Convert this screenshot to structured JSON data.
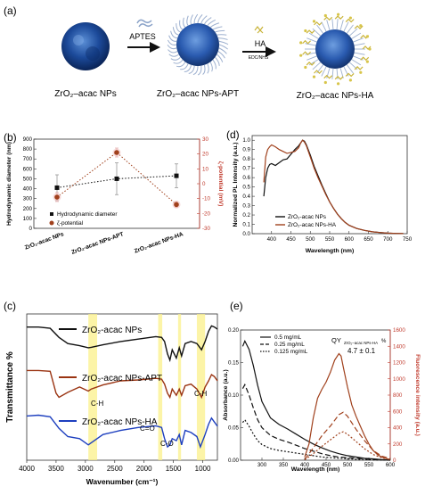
{
  "panel_a": {
    "label": "(a)",
    "step1": "APTES",
    "step2": "HA",
    "step2_sub": "EDC/NHS",
    "np1": "ZrO₂–acac NPs",
    "np2": "ZrO₂–acac NPs-APT",
    "np3": "ZrO₂–acac NPs-HA"
  },
  "panel_b": {
    "label": "(b)",
    "chart_data": {
      "type": "scatter",
      "categories": [
        "ZrO₂-acac NPs",
        "ZrO₂-acac NPs-APT",
        "ZrO₂-acac NPs-HA"
      ],
      "series": [
        {
          "name": "Hydrodynamic diameter",
          "axis": "left",
          "values": [
            410,
            500,
            530
          ],
          "errors": [
            130,
            160,
            120
          ],
          "color": "#111111"
        },
        {
          "name": "ζ-potential",
          "axis": "right",
          "values": [
            -9,
            21,
            -14
          ],
          "errors": [
            3,
            3,
            2
          ],
          "color": "#a0401c"
        }
      ],
      "ylabel": "Hydrodynamic diameter (nm)",
      "ylabel_right": "ζ-potential (mV)",
      "ylim": [
        0,
        900
      ],
      "ylim_right": [
        -30,
        30
      ],
      "yticks": [
        0,
        100,
        200,
        300,
        400,
        500,
        600,
        700,
        800,
        900
      ],
      "yticks_right": [
        -30,
        -20,
        -10,
        0,
        10,
        20,
        30
      ],
      "legend": [
        "Hydrodynamic diameter",
        "ζ-potential"
      ],
      "legend_position": "bottom-left"
    }
  },
  "panel_d": {
    "label": "(d)",
    "chart_data": {
      "type": "line",
      "xlabel": "Wavelength (nm)",
      "ylabel": "Normalized PL Intensity (a.u.)",
      "xlim": [
        350,
        750
      ],
      "ylim": [
        0,
        1.05
      ],
      "xticks": [
        400,
        450,
        500,
        550,
        600,
        650,
        700,
        750
      ],
      "yticks": [
        0.0,
        0.1,
        0.2,
        0.3,
        0.4,
        0.5,
        0.6,
        0.7,
        0.8,
        0.9,
        1.0
      ],
      "series": [
        {
          "name": "ZrO₂-acac NPs",
          "color": "#111111",
          "x": [
            380,
            385,
            390,
            395,
            400,
            410,
            420,
            430,
            440,
            450,
            460,
            470,
            475,
            480,
            485,
            490,
            500,
            510,
            520,
            530,
            540,
            550,
            560,
            570,
            580,
            590,
            600,
            620,
            640,
            660,
            680,
            700,
            720,
            740
          ],
          "y": [
            0.4,
            0.6,
            0.7,
            0.74,
            0.75,
            0.73,
            0.76,
            0.79,
            0.8,
            0.85,
            0.9,
            0.94,
            0.97,
            1.0,
            0.99,
            0.95,
            0.84,
            0.72,
            0.62,
            0.52,
            0.43,
            0.34,
            0.27,
            0.21,
            0.16,
            0.12,
            0.09,
            0.055,
            0.035,
            0.02,
            0.012,
            0.006,
            0.003,
            0.001
          ]
        },
        {
          "name": "ZrO₂-acac NPs-HA",
          "color": "#a0401c",
          "x": [
            380,
            385,
            390,
            395,
            400,
            410,
            420,
            430,
            440,
            450,
            460,
            470,
            475,
            480,
            485,
            490,
            500,
            510,
            520,
            530,
            540,
            550,
            560,
            570,
            580,
            590,
            600,
            620,
            640,
            660,
            680,
            700,
            720,
            740
          ],
          "y": [
            0.55,
            0.82,
            0.9,
            0.93,
            0.95,
            0.93,
            0.9,
            0.88,
            0.86,
            0.87,
            0.88,
            0.92,
            0.97,
            1.0,
            0.98,
            0.94,
            0.82,
            0.7,
            0.6,
            0.51,
            0.42,
            0.34,
            0.27,
            0.21,
            0.16,
            0.12,
            0.09,
            0.055,
            0.035,
            0.02,
            0.012,
            0.006,
            0.003,
            0.001
          ]
        }
      ],
      "legend": [
        "ZrO₂-acac NPs",
        "ZrO₂-acac NPs-HA"
      ],
      "legend_position": "bottom-center"
    }
  },
  "panel_c": {
    "label": "(c)",
    "chart_data": {
      "type": "line",
      "xlabel": "Wavenumber (cm⁻¹)",
      "ylabel": "Transmittance %",
      "xlim": [
        4000,
        750
      ],
      "xticks": [
        4000,
        3500,
        3000,
        2500,
        2000,
        1500,
        1000
      ],
      "series": [
        {
          "name": "ZrO₂-acac NPs",
          "color": "#111111",
          "offset": 2.0,
          "x": [
            4000,
            3800,
            3600,
            3450,
            3300,
            3100,
            2950,
            2900,
            2700,
            2400,
            2100,
            1800,
            1700,
            1650,
            1600,
            1560,
            1520,
            1450,
            1400,
            1360,
            1300,
            1200,
            1100,
            1020,
            960,
            900,
            850,
            800,
            750
          ],
          "y": [
            0.95,
            0.95,
            0.92,
            0.7,
            0.55,
            0.5,
            0.45,
            0.46,
            0.52,
            0.6,
            0.66,
            0.72,
            0.7,
            0.6,
            0.3,
            0.15,
            0.4,
            0.2,
            0.45,
            0.25,
            0.55,
            0.6,
            0.55,
            0.4,
            0.6,
            0.85,
            0.98,
            0.95,
            0.9
          ]
        },
        {
          "name": "ZrO₂-acac NPs-APT",
          "color": "#9a3412",
          "offset": 1.0,
          "x": [
            4000,
            3800,
            3600,
            3500,
            3450,
            3300,
            3100,
            2950,
            2900,
            2700,
            2400,
            2100,
            1800,
            1700,
            1650,
            1600,
            1560,
            1520,
            1450,
            1400,
            1360,
            1300,
            1200,
            1100,
            1020,
            960,
            900,
            850,
            800,
            750
          ],
          "y": [
            0.95,
            0.95,
            0.93,
            0.4,
            0.3,
            0.42,
            0.55,
            0.45,
            0.5,
            0.6,
            0.7,
            0.72,
            0.76,
            0.74,
            0.62,
            0.4,
            0.3,
            0.5,
            0.35,
            0.5,
            0.35,
            0.58,
            0.62,
            0.5,
            0.3,
            0.55,
            0.7,
            0.85,
            0.8,
            0.7
          ]
        },
        {
          "name": "ZrO₂-acac NPs-HA",
          "color": "#1d3fbf",
          "offset": 0.0,
          "x": [
            4000,
            3800,
            3600,
            3450,
            3300,
            3100,
            2950,
            2900,
            2700,
            2400,
            2100,
            1800,
            1700,
            1650,
            1600,
            1560,
            1520,
            1450,
            1400,
            1360,
            1300,
            1200,
            1100,
            1040,
            960,
            900,
            850,
            800,
            750
          ],
          "y": [
            0.9,
            0.92,
            0.88,
            0.6,
            0.4,
            0.35,
            0.2,
            0.25,
            0.45,
            0.55,
            0.62,
            0.66,
            0.62,
            0.35,
            0.15,
            0.2,
            0.35,
            0.3,
            0.45,
            0.2,
            0.55,
            0.5,
            0.4,
            0.15,
            0.45,
            0.7,
            0.85,
            0.75,
            0.65
          ]
        }
      ],
      "highlight_bands": [
        [
          2950,
          2800
        ],
        [
          1760,
          1690
        ],
        [
          1420,
          1370
        ],
        [
          1100,
          960
        ]
      ],
      "annotations": [
        "C-H",
        "C=O",
        "C-O",
        "C-H"
      ]
    }
  },
  "panel_e": {
    "label": "(e)",
    "qy_label": "QY",
    "qy_sub": "ZrO₂–acac NPs-HA",
    "qy_unit": "%",
    "qy_value": "4.7 ± 0.1",
    "chart_data": {
      "type": "line",
      "xlabel": "Wavelength (nm)",
      "ylabel": "Absorbance (a.u.)",
      "ylabel_right": "Fluorescence intensity (a.u.)",
      "xlim": [
        250,
        600
      ],
      "ylim": [
        0,
        0.2
      ],
      "ylim_right": [
        0,
        1600
      ],
      "xticks": [
        300,
        350,
        400,
        450,
        500,
        550,
        600
      ],
      "yticks": [
        0.0,
        0.05,
        0.1,
        0.15,
        0.2
      ],
      "yticks_right": [
        0,
        200,
        400,
        600,
        800,
        1000,
        1200,
        1400,
        1600
      ],
      "legend": [
        "0.5 mg/mL",
        "0.25 mg/mL",
        "0.125 mg/mL"
      ],
      "legend_position": "top-left",
      "absorbance_series": [
        {
          "name": "0.5 mg/mL",
          "dash": "",
          "x": [
            255,
            260,
            270,
            280,
            290,
            300,
            320,
            340,
            360,
            380,
            400,
            420,
            440,
            460,
            480,
            500,
            520,
            540,
            560,
            580,
            600
          ],
          "y": [
            0.175,
            0.183,
            0.17,
            0.145,
            0.115,
            0.09,
            0.065,
            0.055,
            0.048,
            0.04,
            0.032,
            0.025,
            0.019,
            0.014,
            0.01,
            0.007,
            0.005,
            0.003,
            0.002,
            0.001,
            0.0
          ]
        },
        {
          "name": "0.25 mg/mL",
          "dash": "6,3",
          "x": [
            255,
            260,
            270,
            280,
            290,
            300,
            320,
            340,
            360,
            380,
            400,
            420,
            440,
            460,
            480,
            500,
            520,
            540,
            560,
            580,
            600
          ],
          "y": [
            0.11,
            0.116,
            0.1,
            0.08,
            0.062,
            0.05,
            0.038,
            0.032,
            0.028,
            0.023,
            0.018,
            0.014,
            0.01,
            0.007,
            0.005,
            0.004,
            0.003,
            0.002,
            0.001,
            0.0005,
            0.0
          ]
        },
        {
          "name": "0.125 mg/mL",
          "dash": "2,2",
          "x": [
            255,
            260,
            270,
            280,
            290,
            300,
            320,
            340,
            360,
            380,
            400,
            420,
            440,
            460,
            480,
            500,
            520,
            540,
            560,
            580,
            600
          ],
          "y": [
            0.058,
            0.062,
            0.052,
            0.04,
            0.03,
            0.024,
            0.018,
            0.015,
            0.013,
            0.011,
            0.009,
            0.007,
            0.005,
            0.004,
            0.003,
            0.002,
            0.0015,
            0.001,
            0.0005,
            0.0002,
            0.0
          ]
        }
      ],
      "fluorescence_series": [
        {
          "name": "0.5 mg/mL",
          "dash": "",
          "x": [
            400,
            410,
            420,
            430,
            440,
            450,
            460,
            470,
            480,
            485,
            490,
            500,
            510,
            520,
            530,
            540,
            550,
            560,
            570,
            580,
            590,
            600
          ],
          "y": [
            40,
            200,
            520,
            760,
            870,
            960,
            1080,
            1230,
            1310,
            1280,
            1150,
            900,
            680,
            540,
            420,
            300,
            200,
            120,
            70,
            40,
            20,
            10
          ]
        },
        {
          "name": "0.25 mg/mL",
          "dash": "6,3",
          "x": [
            400,
            420,
            440,
            460,
            480,
            490,
            500,
            520,
            540,
            560,
            580,
            600
          ],
          "y": [
            10,
            150,
            300,
            420,
            560,
            590,
            540,
            380,
            240,
            120,
            50,
            20
          ]
        },
        {
          "name": "0.125 mg/mL",
          "dash": "2,2",
          "x": [
            400,
            420,
            440,
            460,
            480,
            490,
            500,
            520,
            540,
            560,
            580,
            600
          ],
          "y": [
            5,
            80,
            170,
            250,
            330,
            350,
            320,
            230,
            140,
            70,
            30,
            10
          ]
        }
      ]
    }
  }
}
